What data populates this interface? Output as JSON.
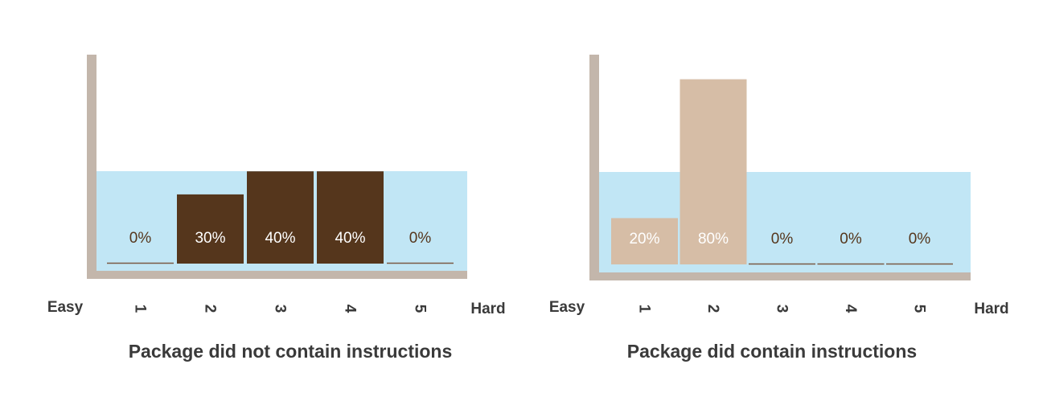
{
  "colors": {
    "axis": "#c3b6ab",
    "band": "#c1e6f5",
    "dark_bar": "#55361c",
    "light_bar": "#d6bda6",
    "baseline": "#7a5a45",
    "value_text_on_bar": "#ffffff",
    "value_text_plain": "#55361c",
    "label_text": "#3a3a3a"
  },
  "chart_data": [
    {
      "type": "bar",
      "title": "Package did not contain instructions",
      "categories": [
        "1",
        "2",
        "3",
        "4",
        "5"
      ],
      "values": [
        0,
        30,
        40,
        40,
        0
      ],
      "value_labels": [
        "0%",
        "30%",
        "40%",
        "40%",
        "0%"
      ],
      "left_end_label": "Easy",
      "right_end_label": "Hard",
      "ylim": [
        0,
        100
      ],
      "grid": false,
      "bar_color": "#55361c"
    },
    {
      "type": "bar",
      "title": "Package did contain instructions",
      "categories": [
        "1",
        "2",
        "3",
        "4",
        "5"
      ],
      "values": [
        20,
        80,
        0,
        0,
        0
      ],
      "value_labels": [
        "20%",
        "80%",
        "0%",
        "0%",
        "0%"
      ],
      "left_end_label": "Easy",
      "right_end_label": "Hard",
      "ylim": [
        0,
        100
      ],
      "grid": false,
      "bar_color": "#d6bda6"
    }
  ]
}
